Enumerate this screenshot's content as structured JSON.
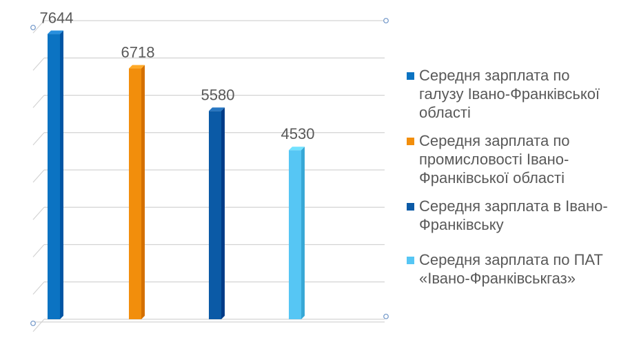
{
  "chart_data": {
    "type": "bar",
    "title": "",
    "xlabel": "",
    "ylabel": "",
    "ylim": [
      0,
      8000
    ],
    "grid": true,
    "legend_position": "right",
    "series": [
      {
        "name": "Середня зарплата по галузу Івано-Франківської області",
        "value": 7644,
        "color": "#0b73c2"
      },
      {
        "name": "Середня зарплата по промисловості Івано-Франківської області",
        "value": 6718,
        "color": "#f28e0c"
      },
      {
        "name": "Середня зарплата в Івано-Франківську",
        "value": 5580,
        "color": "#0b5aa6"
      },
      {
        "name": "Середня зарплата по ПАТ «Івано-Франківськгаз»",
        "value": 4530,
        "color": "#56c6f4"
      }
    ]
  }
}
